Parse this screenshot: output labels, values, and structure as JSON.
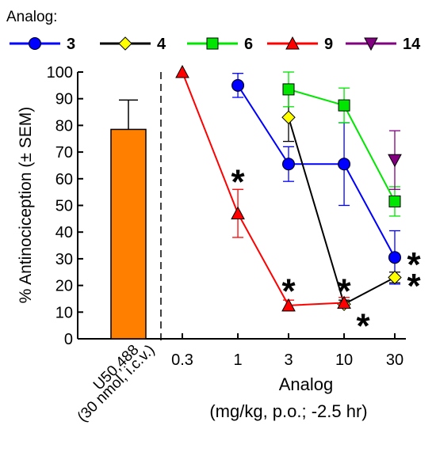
{
  "legend": {
    "title": "Analog:",
    "entries": [
      {
        "label": "3",
        "color": "#0000ff",
        "marker": "circle"
      },
      {
        "label": "4",
        "color": "#ffff00",
        "marker": "diamond"
      },
      {
        "label": "6",
        "color": "#00e600",
        "marker": "square"
      },
      {
        "label": "9",
        "color": "#ff0000",
        "marker": "triangle-up"
      },
      {
        "label": "14",
        "color": "#800080",
        "marker": "triangle-down"
      }
    ]
  },
  "chart_data": {
    "type": "line",
    "ylabel": "% Antinociception (± SEM)",
    "xlabel_line1": "Analog",
    "xlabel_line2": "(mg/kg, p.o.; -2.5 hr)",
    "ylim": [
      0,
      100
    ],
    "yticks": [
      0,
      10,
      20,
      30,
      40,
      50,
      60,
      70,
      80,
      90,
      100
    ],
    "xscale": "log",
    "xticks": [
      0.3,
      1,
      3,
      10,
      30
    ],
    "xtick_labels": [
      "0.3",
      "1",
      "3",
      "10",
      "30"
    ],
    "control_bar": {
      "label_line1": "U50,488",
      "label_line2": "(30 nmol, i.c.v.)",
      "value": 78.5,
      "sem": 11,
      "color": "#ff8000"
    },
    "series": [
      {
        "name": "3",
        "color": "#0000ff",
        "marker": "circle",
        "x": [
          1,
          3,
          10,
          30
        ],
        "y": [
          95,
          65.5,
          65.5,
          30.5
        ],
        "sem": [
          4.5,
          6.5,
          15.5,
          10
        ]
      },
      {
        "name": "4",
        "color": "#ffff00",
        "line_color": "#000000",
        "marker": "diamond",
        "x": [
          3,
          10,
          30
        ],
        "y": [
          83,
          13,
          23
        ],
        "sem": [
          9,
          1.5,
          2
        ]
      },
      {
        "name": "6",
        "color": "#00e600",
        "marker": "square",
        "x": [
          3,
          10,
          30
        ],
        "y": [
          93.5,
          87.5,
          51.5
        ],
        "sem": [
          6.5,
          6.5,
          5.5
        ]
      },
      {
        "name": "9",
        "color": "#ff0000",
        "marker": "triangle-up",
        "x": [
          0.3,
          1,
          3,
          10
        ],
        "y": [
          100,
          47,
          12.5,
          13.5
        ],
        "sem": [
          0,
          9,
          2,
          2
        ]
      },
      {
        "name": "14",
        "color": "#800080",
        "marker": "triangle-down",
        "x": [
          30
        ],
        "y": [
          67
        ],
        "sem": [
          11
        ]
      }
    ],
    "significance_marks": [
      {
        "text": "*",
        "x": 1,
        "y": 61
      },
      {
        "text": "*",
        "x": 3,
        "y": 20
      },
      {
        "text": "*",
        "x": 10,
        "y": 20
      },
      {
        "text": "*",
        "x": 10,
        "y": 7
      },
      {
        "text": "*",
        "x": 30,
        "y": 30
      },
      {
        "text": "*",
        "x": 30,
        "y": 22
      }
    ]
  }
}
